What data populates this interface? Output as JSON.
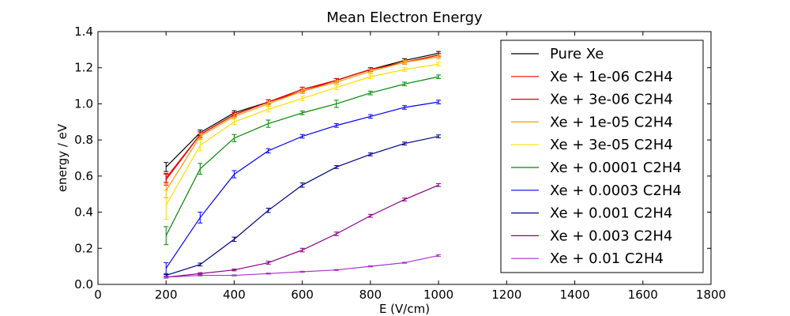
{
  "chart_data": {
    "type": "line",
    "title": "Mean Electron Energy",
    "xlabel": "E (V/cm)",
    "ylabel": "energy / eV",
    "xlim": [
      0,
      1800
    ],
    "ylim": [
      0.0,
      1.4
    ],
    "xticks": [
      "0",
      "200",
      "400",
      "600",
      "800",
      "1000",
      "1200",
      "1400",
      "1600",
      "1800"
    ],
    "yticks": [
      "0.0",
      "0.2",
      "0.4",
      "0.6",
      "0.8",
      "1.0",
      "1.2",
      "1.4"
    ],
    "grid": false,
    "legend_position": "upper-right",
    "x": [
      200,
      300,
      400,
      500,
      600,
      700,
      800,
      900,
      1000
    ],
    "series": [
      {
        "name": "Pure Xe",
        "color": "#000000",
        "values": [
          0.65,
          0.84,
          0.95,
          1.01,
          1.08,
          1.13,
          1.19,
          1.24,
          1.28
        ],
        "errors": [
          0.025,
          0.015,
          0.012,
          0.012,
          0.012,
          0.01,
          0.01,
          0.01,
          0.01
        ]
      },
      {
        "name": "Xe + 1e-06 C2H4",
        "color": "#ff0000",
        "values": [
          0.59,
          0.83,
          0.94,
          1.01,
          1.08,
          1.13,
          1.19,
          1.23,
          1.27
        ],
        "errors": [
          0.025,
          0.015,
          0.012,
          0.012,
          0.012,
          0.01,
          0.01,
          0.01,
          0.01
        ]
      },
      {
        "name": "Xe + 3e-06 C2H4",
        "color": "#dd0000",
        "values": [
          0.58,
          0.83,
          0.94,
          1.01,
          1.07,
          1.13,
          1.19,
          1.23,
          1.27
        ],
        "errors": [
          0.03,
          0.015,
          0.012,
          0.012,
          0.012,
          0.01,
          0.01,
          0.01,
          0.01
        ]
      },
      {
        "name": "Xe + 1e-05 C2H4",
        "color": "#ff9900",
        "values": [
          0.52,
          0.82,
          0.93,
          1.0,
          1.07,
          1.12,
          1.18,
          1.23,
          1.26
        ],
        "errors": [
          0.04,
          0.015,
          0.012,
          0.012,
          0.012,
          0.01,
          0.01,
          0.01,
          0.01
        ]
      },
      {
        "name": "Xe + 3e-05 C2H4",
        "color": "#ffdd00",
        "values": [
          0.44,
          0.77,
          0.9,
          0.97,
          1.03,
          1.09,
          1.15,
          1.19,
          1.22
        ],
        "errors": [
          0.08,
          0.03,
          0.015,
          0.015,
          0.012,
          0.012,
          0.01,
          0.01,
          0.01
        ]
      },
      {
        "name": "Xe + 0.0001 C2H4",
        "color": "#008800",
        "values": [
          0.27,
          0.64,
          0.81,
          0.89,
          0.95,
          1.0,
          1.06,
          1.11,
          1.15
        ],
        "errors": [
          0.05,
          0.03,
          0.02,
          0.02,
          0.01,
          0.02,
          0.01,
          0.01,
          0.01
        ]
      },
      {
        "name": "Xe + 0.0003 C2H4",
        "color": "#0000ff",
        "values": [
          0.09,
          0.37,
          0.61,
          0.74,
          0.82,
          0.88,
          0.93,
          0.98,
          1.01
        ],
        "errors": [
          0.03,
          0.03,
          0.02,
          0.012,
          0.01,
          0.01,
          0.01,
          0.01,
          0.01
        ]
      },
      {
        "name": "Xe + 0.001 C2H4",
        "color": "#000088",
        "values": [
          0.05,
          0.11,
          0.25,
          0.41,
          0.55,
          0.65,
          0.72,
          0.78,
          0.82
        ],
        "errors": [
          0.005,
          0.008,
          0.012,
          0.012,
          0.012,
          0.008,
          0.008,
          0.008,
          0.008
        ]
      },
      {
        "name": "Xe + 0.003 C2H4",
        "color": "#880088",
        "values": [
          0.04,
          0.06,
          0.08,
          0.12,
          0.19,
          0.28,
          0.38,
          0.47,
          0.55
        ],
        "errors": [
          0.005,
          0.005,
          0.005,
          0.008,
          0.01,
          0.01,
          0.008,
          0.008,
          0.008
        ]
      },
      {
        "name": "Xe + 0.01 C2H4",
        "color": "#aa33cc",
        "values": [
          0.04,
          0.05,
          0.05,
          0.06,
          0.07,
          0.08,
          0.1,
          0.12,
          0.16
        ],
        "errors": [
          0.003,
          0.003,
          0.003,
          0.003,
          0.003,
          0.003,
          0.003,
          0.003,
          0.005
        ]
      }
    ]
  }
}
